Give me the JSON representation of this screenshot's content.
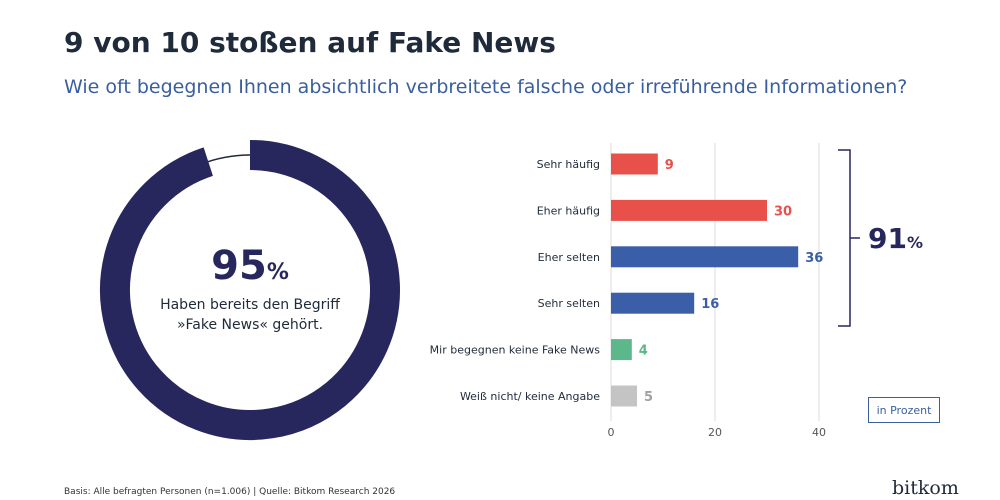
{
  "title": "9 von 10 stoßen auf Fake News",
  "subtitle": "Wie oft begegnen Ihnen absichtlich verbreitete falsche oder irreführende Informationen?",
  "donut": {
    "value": 95,
    "value_label": "95",
    "percent_sign": "%",
    "line1": "Haben bereits den Begriff",
    "line2": "»Fake News« gehört.",
    "color": "#27275e"
  },
  "total": {
    "value_label": "91",
    "percent_sign": "%"
  },
  "unit_label": "in Prozent",
  "footer": "Basis: Alle befragten Personen (n=1.006) | Quelle: Bitkom Research 2026",
  "logo": "bitkom",
  "chart_data": {
    "type": "bar",
    "orientation": "horizontal",
    "categories": [
      "Sehr häufig",
      "Eher häufig",
      "Eher selten",
      "Sehr selten",
      "Mir begegnen keine Fake News",
      "Weiß nicht/ keine Angabe"
    ],
    "values": [
      9,
      30,
      36,
      16,
      4,
      5
    ],
    "colors": [
      "#e8504a",
      "#e8504a",
      "#3a5fa8",
      "#3a5fa8",
      "#5cb88a",
      "#c4c4c4"
    ],
    "xticks": [
      0,
      20,
      40
    ],
    "xlim": [
      0,
      40
    ],
    "grid": true
  }
}
